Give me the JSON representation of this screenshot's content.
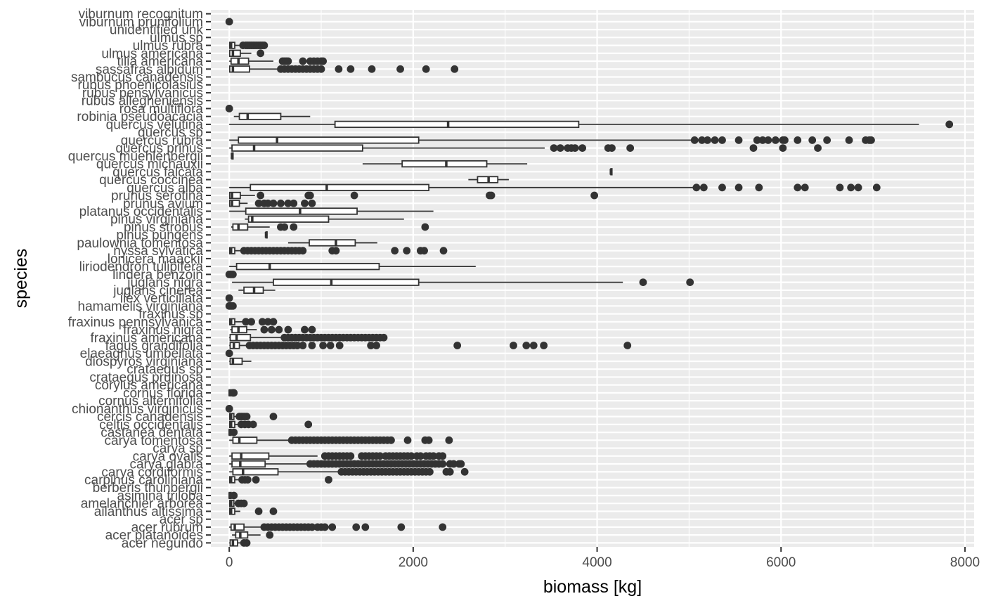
{
  "chart_data": {
    "type": "boxplot",
    "orientation": "horizontal",
    "title": "",
    "xlabel": "biomass [kg]",
    "ylabel": "species",
    "xlim": [
      -200,
      8100
    ],
    "x_ticks": [
      0,
      2000,
      4000,
      6000,
      8000
    ],
    "grid": true,
    "colors": {
      "panel": "#ebebeb",
      "grid_major": "#ffffff",
      "box_fill": "#ffffff",
      "line": "#333333",
      "outlier": "#333333",
      "tick_text": "#4d4d4d"
    },
    "series": [
      {
        "name": "viburnum recognitum",
        "box": null,
        "outliers": []
      },
      {
        "name": "viburnum prunifolium",
        "box": {
          "min": 0,
          "q1": 0,
          "median": 0,
          "q3": 0,
          "max": 0
        },
        "outliers": [
          0
        ]
      },
      {
        "name": "unidentified unk",
        "box": null,
        "outliers": []
      },
      {
        "name": "ulmus sp",
        "box": null,
        "outliers": []
      },
      {
        "name": "ulmus rubra",
        "box": {
          "min": 0,
          "q1": 5,
          "median": 20,
          "q3": 60,
          "max": 120
        },
        "outliers": [
          150,
          180,
          200,
          220,
          240,
          260,
          280,
          300,
          320,
          340,
          360,
          380
        ]
      },
      {
        "name": "ulmus americana",
        "box": {
          "min": 0,
          "q1": 5,
          "median": 40,
          "q3": 120,
          "max": 240
        },
        "outliers": [
          340
        ]
      },
      {
        "name": "tilia americana",
        "box": {
          "min": 0,
          "q1": 20,
          "median": 100,
          "q3": 210,
          "max": 480
        },
        "outliers": [
          580,
          600,
          620,
          640,
          800,
          880,
          920,
          960,
          1000,
          1020
        ]
      },
      {
        "name": "sassafras albidum",
        "box": {
          "min": 0,
          "q1": 5,
          "median": 40,
          "q3": 220,
          "max": 520
        },
        "outliers": [
          560,
          600,
          640,
          680,
          720,
          760,
          800,
          840,
          880,
          920,
          960,
          1000,
          1190,
          1320,
          1550,
          1860,
          2140,
          2450
        ]
      },
      {
        "name": "sambucus canadensis",
        "box": null,
        "outliers": []
      },
      {
        "name": "rubus phoenicolasius",
        "box": null,
        "outliers": []
      },
      {
        "name": "rubus pensylvanicus",
        "box": null,
        "outliers": []
      },
      {
        "name": "rubus allegheniensis",
        "box": null,
        "outliers": []
      },
      {
        "name": "rosa multiflora",
        "box": {
          "min": 0,
          "q1": 0,
          "median": 0,
          "q3": 0,
          "max": 0
        },
        "outliers": [
          0
        ]
      },
      {
        "name": "robinia pseudoacacia",
        "box": {
          "min": 50,
          "q1": 110,
          "median": 200,
          "q3": 560,
          "max": 880
        },
        "outliers": []
      },
      {
        "name": "quercus velutina",
        "box": {
          "min": 0,
          "q1": 1150,
          "median": 2380,
          "q3": 3800,
          "max": 7500
        },
        "outliers": [
          7830
        ]
      },
      {
        "name": "quercus sp",
        "box": null,
        "outliers": []
      },
      {
        "name": "quercus rubra",
        "box": {
          "min": 0,
          "q1": 100,
          "median": 520,
          "q3": 2060,
          "max": 5050
        },
        "outliers": [
          5060,
          5140,
          5200,
          5280,
          5360,
          5540,
          5740,
          5800,
          5860,
          5940,
          6020,
          6040,
          6180,
          6340,
          6500,
          6740,
          6920,
          6960,
          6980
        ]
      },
      {
        "name": "quercus prinus",
        "box": {
          "min": 0,
          "q1": 30,
          "median": 270,
          "q3": 1450,
          "max": 3430
        },
        "outliers": [
          3530,
          3600,
          3680,
          3720,
          3760,
          3840,
          4120,
          4160,
          4360,
          5700,
          6020,
          6400
        ]
      },
      {
        "name": "quercus muehlenbergii",
        "box": {
          "min": 30,
          "q1": 30,
          "median": 30,
          "q3": 30,
          "max": 30
        },
        "outliers": []
      },
      {
        "name": "quercus michauxii",
        "box": {
          "min": 1450,
          "q1": 1880,
          "median": 2360,
          "q3": 2800,
          "max": 3240
        },
        "outliers": []
      },
      {
        "name": "quercus falcata",
        "box": {
          "min": 4150,
          "q1": 4150,
          "median": 4150,
          "q3": 4150,
          "max": 4150
        },
        "outliers": []
      },
      {
        "name": "quercus coccinea",
        "box": {
          "min": 2600,
          "q1": 2700,
          "median": 2820,
          "q3": 2920,
          "max": 3040
        },
        "outliers": []
      },
      {
        "name": "quercus alba",
        "box": {
          "min": 0,
          "q1": 230,
          "median": 1060,
          "q3": 2170,
          "max": 5050
        },
        "outliers": [
          5080,
          5160,
          5360,
          5540,
          5760,
          6180,
          6260,
          6640,
          6760,
          6840,
          7040
        ]
      },
      {
        "name": "prunus serotina",
        "box": {
          "min": 0,
          "q1": 5,
          "median": 30,
          "q3": 120,
          "max": 280
        },
        "outliers": [
          340,
          860,
          880,
          1360,
          2830,
          2850,
          3970
        ]
      },
      {
        "name": "prunus avium",
        "box": {
          "min": 0,
          "q1": 5,
          "median": 30,
          "q3": 110,
          "max": 200
        },
        "outliers": [
          320,
          380,
          420,
          480,
          560,
          640,
          700,
          820,
          900
        ]
      },
      {
        "name": "platanus occidentalis",
        "box": {
          "min": 0,
          "q1": 180,
          "median": 770,
          "q3": 1390,
          "max": 2220
        },
        "outliers": []
      },
      {
        "name": "pinus virginiana",
        "box": {
          "min": 170,
          "q1": 210,
          "median": 250,
          "q3": 1080,
          "max": 1900
        },
        "outliers": []
      },
      {
        "name": "pinus strobus",
        "box": {
          "min": 20,
          "q1": 40,
          "median": 100,
          "q3": 200,
          "max": 440
        },
        "outliers": [
          560,
          600,
          700,
          2130
        ]
      },
      {
        "name": "pinus pungens",
        "box": {
          "min": 400,
          "q1": 400,
          "median": 400,
          "q3": 400,
          "max": 400
        },
        "outliers": []
      },
      {
        "name": "paulownia tomentosa",
        "box": {
          "min": 640,
          "q1": 870,
          "median": 1160,
          "q3": 1370,
          "max": 1610
        },
        "outliers": []
      },
      {
        "name": "nyssa sylvatica",
        "box": {
          "min": 0,
          "q1": 5,
          "median": 20,
          "q3": 60,
          "max": 140
        },
        "outliers": [
          160,
          200,
          240,
          280,
          320,
          360,
          400,
          440,
          480,
          520,
          560,
          600,
          640,
          680,
          720,
          760,
          800,
          1120,
          1160,
          1800,
          1930,
          2080,
          2120,
          2330
        ]
      },
      {
        "name": "lonicera maackii",
        "box": null,
        "outliers": []
      },
      {
        "name": "liriodendron tulipifera",
        "box": {
          "min": 0,
          "q1": 80,
          "median": 440,
          "q3": 1630,
          "max": 2680
        },
        "outliers": []
      },
      {
        "name": "lindera benzoin",
        "box": {
          "min": 0,
          "q1": 0,
          "median": 0,
          "q3": 0,
          "max": 0
        },
        "outliers": [
          0,
          20,
          40
        ]
      },
      {
        "name": "juglans nigra",
        "box": {
          "min": 30,
          "q1": 480,
          "median": 1110,
          "q3": 2060,
          "max": 4280
        },
        "outliers": [
          4500,
          5010
        ]
      },
      {
        "name": "juglans cinerea",
        "box": {
          "min": 100,
          "q1": 160,
          "median": 270,
          "q3": 370,
          "max": 500
        },
        "outliers": []
      },
      {
        "name": "ilex verticillata",
        "box": {
          "min": 0,
          "q1": 0,
          "median": 0,
          "q3": 0,
          "max": 0
        },
        "outliers": [
          0
        ]
      },
      {
        "name": "hamamelis virginiana",
        "box": {
          "min": 0,
          "q1": 0,
          "median": 0,
          "q3": 0,
          "max": 0
        },
        "outliers": [
          0,
          20,
          40
        ]
      },
      {
        "name": "fraxinus sp",
        "box": null,
        "outliers": []
      },
      {
        "name": "fraxinus pennsylvanica",
        "box": {
          "min": 0,
          "q1": 5,
          "median": 20,
          "q3": 60,
          "max": 140
        },
        "outliers": [
          180,
          240,
          360,
          420,
          480
        ]
      },
      {
        "name": "fraxinus nigra",
        "box": {
          "min": 10,
          "q1": 30,
          "median": 100,
          "q3": 190,
          "max": 300
        },
        "outliers": [
          380,
          460,
          540,
          640,
          820,
          900
        ]
      },
      {
        "name": "fraxinus americana",
        "box": {
          "min": 0,
          "q1": 10,
          "median": 80,
          "q3": 230,
          "max": 560
        },
        "outliers": [
          600,
          640,
          680,
          720,
          760,
          800,
          840,
          880,
          920,
          960,
          1000,
          1040,
          1080,
          1120,
          1160,
          1200,
          1240,
          1280,
          1320,
          1360,
          1400,
          1440,
          1480,
          1520,
          1560,
          1600,
          1640,
          1680
        ]
      },
      {
        "name": "fagus grandifolia",
        "box": {
          "min": 0,
          "q1": 10,
          "median": 50,
          "q3": 110,
          "max": 200
        },
        "outliers": [
          220,
          260,
          300,
          340,
          380,
          420,
          460,
          500,
          540,
          580,
          620,
          660,
          700,
          740,
          800,
          900,
          1020,
          1100,
          1200,
          1540,
          1600,
          2480,
          3090,
          3230,
          3310,
          3420,
          4330
        ]
      },
      {
        "name": "elaeagnus umbellata",
        "box": {
          "min": 0,
          "q1": 0,
          "median": 0,
          "q3": 0,
          "max": 0
        },
        "outliers": [
          0
        ]
      },
      {
        "name": "diospyros virginiana",
        "box": {
          "min": 0,
          "q1": 10,
          "median": 40,
          "q3": 140,
          "max": 240
        },
        "outliers": []
      },
      {
        "name": "crataegus sp",
        "box": null,
        "outliers": []
      },
      {
        "name": "crataegus pruinosa",
        "box": null,
        "outliers": []
      },
      {
        "name": "corylus americana",
        "box": null,
        "outliers": []
      },
      {
        "name": "cornus florida",
        "box": {
          "min": 0,
          "q1": 0,
          "median": 5,
          "q3": 20,
          "max": 30
        },
        "outliers": [
          40,
          50
        ]
      },
      {
        "name": "cornus alternifolia",
        "box": null,
        "outliers": []
      },
      {
        "name": "chionanthus virginicus",
        "box": {
          "min": 0,
          "q1": 0,
          "median": 0,
          "q3": 0,
          "max": 0
        },
        "outliers": [
          0
        ]
      },
      {
        "name": "cercis canadensis",
        "box": {
          "min": 0,
          "q1": 5,
          "median": 20,
          "q3": 50,
          "max": 90
        },
        "outliers": [
          110,
          130,
          150,
          170,
          190,
          480
        ]
      },
      {
        "name": "celtis occidentalis",
        "box": {
          "min": 0,
          "q1": 5,
          "median": 20,
          "q3": 60,
          "max": 110
        },
        "outliers": [
          130,
          170,
          210,
          260,
          860
        ]
      },
      {
        "name": "castanea dentata",
        "box": {
          "min": 0,
          "q1": 0,
          "median": 5,
          "q3": 20,
          "max": 40
        },
        "outliers": [
          50
        ]
      },
      {
        "name": "carya tomentosa",
        "box": {
          "min": 0,
          "q1": 40,
          "median": 110,
          "q3": 300,
          "max": 650
        },
        "outliers": [
          680,
          720,
          760,
          800,
          840,
          880,
          920,
          960,
          1000,
          1040,
          1080,
          1120,
          1160,
          1200,
          1240,
          1280,
          1320,
          1360,
          1400,
          1440,
          1480,
          1520,
          1560,
          1600,
          1640,
          1680,
          1720,
          1760,
          1940,
          2130,
          2170,
          2390
        ]
      },
      {
        "name": "carya sp",
        "box": null,
        "outliers": []
      },
      {
        "name": "carya ovalis",
        "box": {
          "min": 0,
          "q1": 30,
          "median": 130,
          "q3": 430,
          "max": 960
        },
        "outliers": [
          1040,
          1080,
          1120,
          1160,
          1200,
          1240,
          1280,
          1320,
          1440,
          1480,
          1520,
          1560,
          1600,
          1640,
          1700,
          1740,
          1780,
          1820,
          1860,
          1900,
          1940,
          1980,
          2040,
          2080,
          2140,
          2180,
          2220,
          2280,
          2320
        ]
      },
      {
        "name": "carya glabra",
        "box": {
          "min": 0,
          "q1": 30,
          "median": 120,
          "q3": 390,
          "max": 860
        },
        "outliers": [
          880,
          920,
          960,
          1000,
          1040,
          1080,
          1120,
          1160,
          1200,
          1240,
          1280,
          1320,
          1360,
          1400,
          1440,
          1480,
          1520,
          1560,
          1600,
          1640,
          1680,
          1720,
          1760,
          1800,
          1840,
          1880,
          1920,
          1960,
          2000,
          2040,
          2080,
          2120,
          2160,
          2200,
          2240,
          2280,
          2320,
          2400,
          2440,
          2500,
          2520
        ]
      },
      {
        "name": "carya cordiformis",
        "box": {
          "min": 0,
          "q1": 40,
          "median": 150,
          "q3": 530,
          "max": 1200
        },
        "outliers": [
          1220,
          1260,
          1300,
          1340,
          1380,
          1420,
          1460,
          1500,
          1540,
          1580,
          1620,
          1660,
          1700,
          1740,
          1780,
          1820,
          1860,
          1900,
          1940,
          1980,
          2020,
          2060,
          2100,
          2140,
          2180,
          2360,
          2400,
          2560
        ]
      },
      {
        "name": "carpinus caroliniana",
        "box": {
          "min": 0,
          "q1": 5,
          "median": 20,
          "q3": 60,
          "max": 120
        },
        "outliers": [
          140,
          170,
          200,
          290,
          1080
        ]
      },
      {
        "name": "berberis thunbergii",
        "box": null,
        "outliers": []
      },
      {
        "name": "asimina triloba",
        "box": {
          "min": 0,
          "q1": 0,
          "median": 5,
          "q3": 20,
          "max": 40
        },
        "outliers": [
          50
        ]
      },
      {
        "name": "amelanchier arborea",
        "box": {
          "min": 0,
          "q1": 5,
          "median": 20,
          "q3": 50,
          "max": 80
        },
        "outliers": [
          100,
          130,
          160
        ]
      },
      {
        "name": "ailanthus altissima",
        "box": {
          "min": 0,
          "q1": 5,
          "median": 20,
          "q3": 60,
          "max": 120
        },
        "outliers": [
          320,
          480
        ]
      },
      {
        "name": "acer sp",
        "box": null,
        "outliers": []
      },
      {
        "name": "acer rubrum",
        "box": {
          "min": 0,
          "q1": 20,
          "median": 60,
          "q3": 160,
          "max": 360
        },
        "outliers": [
          380,
          420,
          460,
          500,
          540,
          580,
          620,
          660,
          700,
          740,
          780,
          820,
          860,
          900,
          960,
          1000,
          1040,
          1120,
          1380,
          1480,
          1870,
          2320
        ]
      },
      {
        "name": "acer platanoides",
        "box": {
          "min": 30,
          "q1": 70,
          "median": 120,
          "q3": 200,
          "max": 340
        },
        "outliers": [
          440
        ]
      },
      {
        "name": "acer negundo",
        "box": {
          "min": 0,
          "q1": 10,
          "median": 40,
          "q3": 90,
          "max": 140
        },
        "outliers": [
          160,
          190
        ]
      }
    ]
  }
}
